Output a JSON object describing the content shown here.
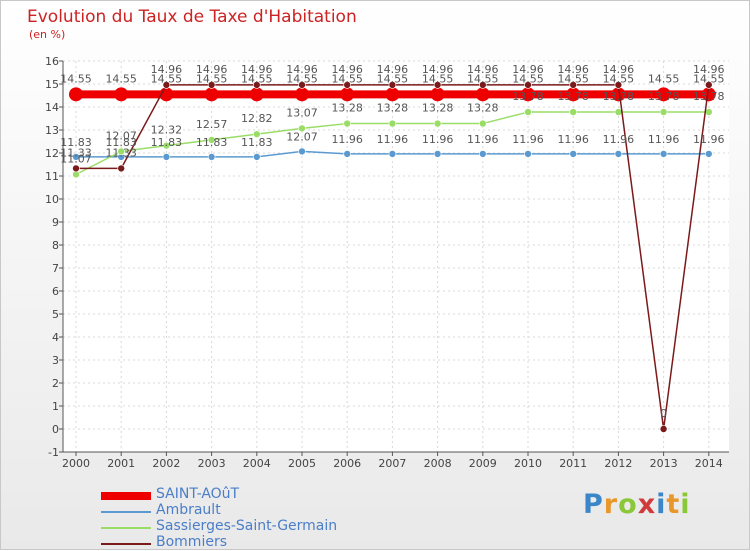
{
  "chart_data": {
    "type": "line",
    "title": "Evolution du Taux de Taxe d'Habitation",
    "subtitle": "(en %)",
    "categories": [
      "2000",
      "2001",
      "2002",
      "2003",
      "2004",
      "2005",
      "2006",
      "2007",
      "2008",
      "2009",
      "2010",
      "2011",
      "2012",
      "2013",
      "2014"
    ],
    "ylim": [
      -1,
      16
    ],
    "yticks": [
      "-1",
      "0",
      "1",
      "2",
      "3",
      "4",
      "5",
      "6",
      "7",
      "8",
      "9",
      "10",
      "11",
      "12",
      "13",
      "14",
      "15",
      "16"
    ],
    "series": [
      {
        "name": "SAINT-AOûT",
        "color": "#ee0000",
        "values": [
          14.55,
          14.55,
          14.55,
          14.55,
          14.55,
          14.55,
          14.55,
          14.55,
          14.55,
          14.55,
          14.55,
          14.55,
          14.55,
          14.55,
          14.55
        ],
        "labels": [
          "14.55",
          "14.55",
          "14.55",
          "14.55",
          "14.55",
          "14.55",
          "14.55",
          "14.55",
          "14.55",
          "14.55",
          "14.55",
          "14.55",
          "14.55",
          "14.55",
          "14.55"
        ]
      },
      {
        "name": "Ambrault",
        "color": "#5a9ad0",
        "values": [
          11.83,
          11.83,
          11.83,
          11.83,
          11.83,
          12.07,
          11.96,
          11.96,
          11.96,
          11.96,
          11.96,
          11.96,
          11.96,
          11.96,
          11.96
        ],
        "labels": [
          "11.83",
          "11.83",
          "11.83",
          "11.83",
          "11.83",
          "12.07",
          "11.96",
          "11.96",
          "11.96",
          "11.96",
          "11.96",
          "11.96",
          "11.96",
          "11.96",
          "11.96"
        ]
      },
      {
        "name": "Sassierges-Saint-Germain",
        "color": "#99dd66",
        "values": [
          11.07,
          12.07,
          12.32,
          12.57,
          12.82,
          13.07,
          13.28,
          13.28,
          13.28,
          13.28,
          13.78,
          13.78,
          13.78,
          13.78,
          13.78
        ],
        "labels": [
          "11.07",
          "12.07",
          "12.32",
          "12.57",
          "12.82",
          "13.07",
          "13.28",
          "13.28",
          "13.28",
          "13.28",
          "13.78",
          "13.78",
          "13.78",
          "13.78",
          "13.78"
        ]
      },
      {
        "name": "Bommiers",
        "color": "#7a1a1a",
        "values": [
          11.33,
          11.33,
          14.96,
          14.96,
          14.96,
          14.96,
          14.96,
          14.96,
          14.96,
          14.96,
          14.96,
          14.96,
          14.96,
          0,
          14.96
        ],
        "labels": [
          "11.33",
          "11.33",
          "14.96",
          "14.96",
          "14.96",
          "14.96",
          "14.96",
          "14.96",
          "14.96",
          "14.96",
          "14.96",
          "14.96",
          "14.96",
          "0",
          "14.96"
        ]
      }
    ]
  },
  "logo": {
    "text": "Proxiti"
  }
}
